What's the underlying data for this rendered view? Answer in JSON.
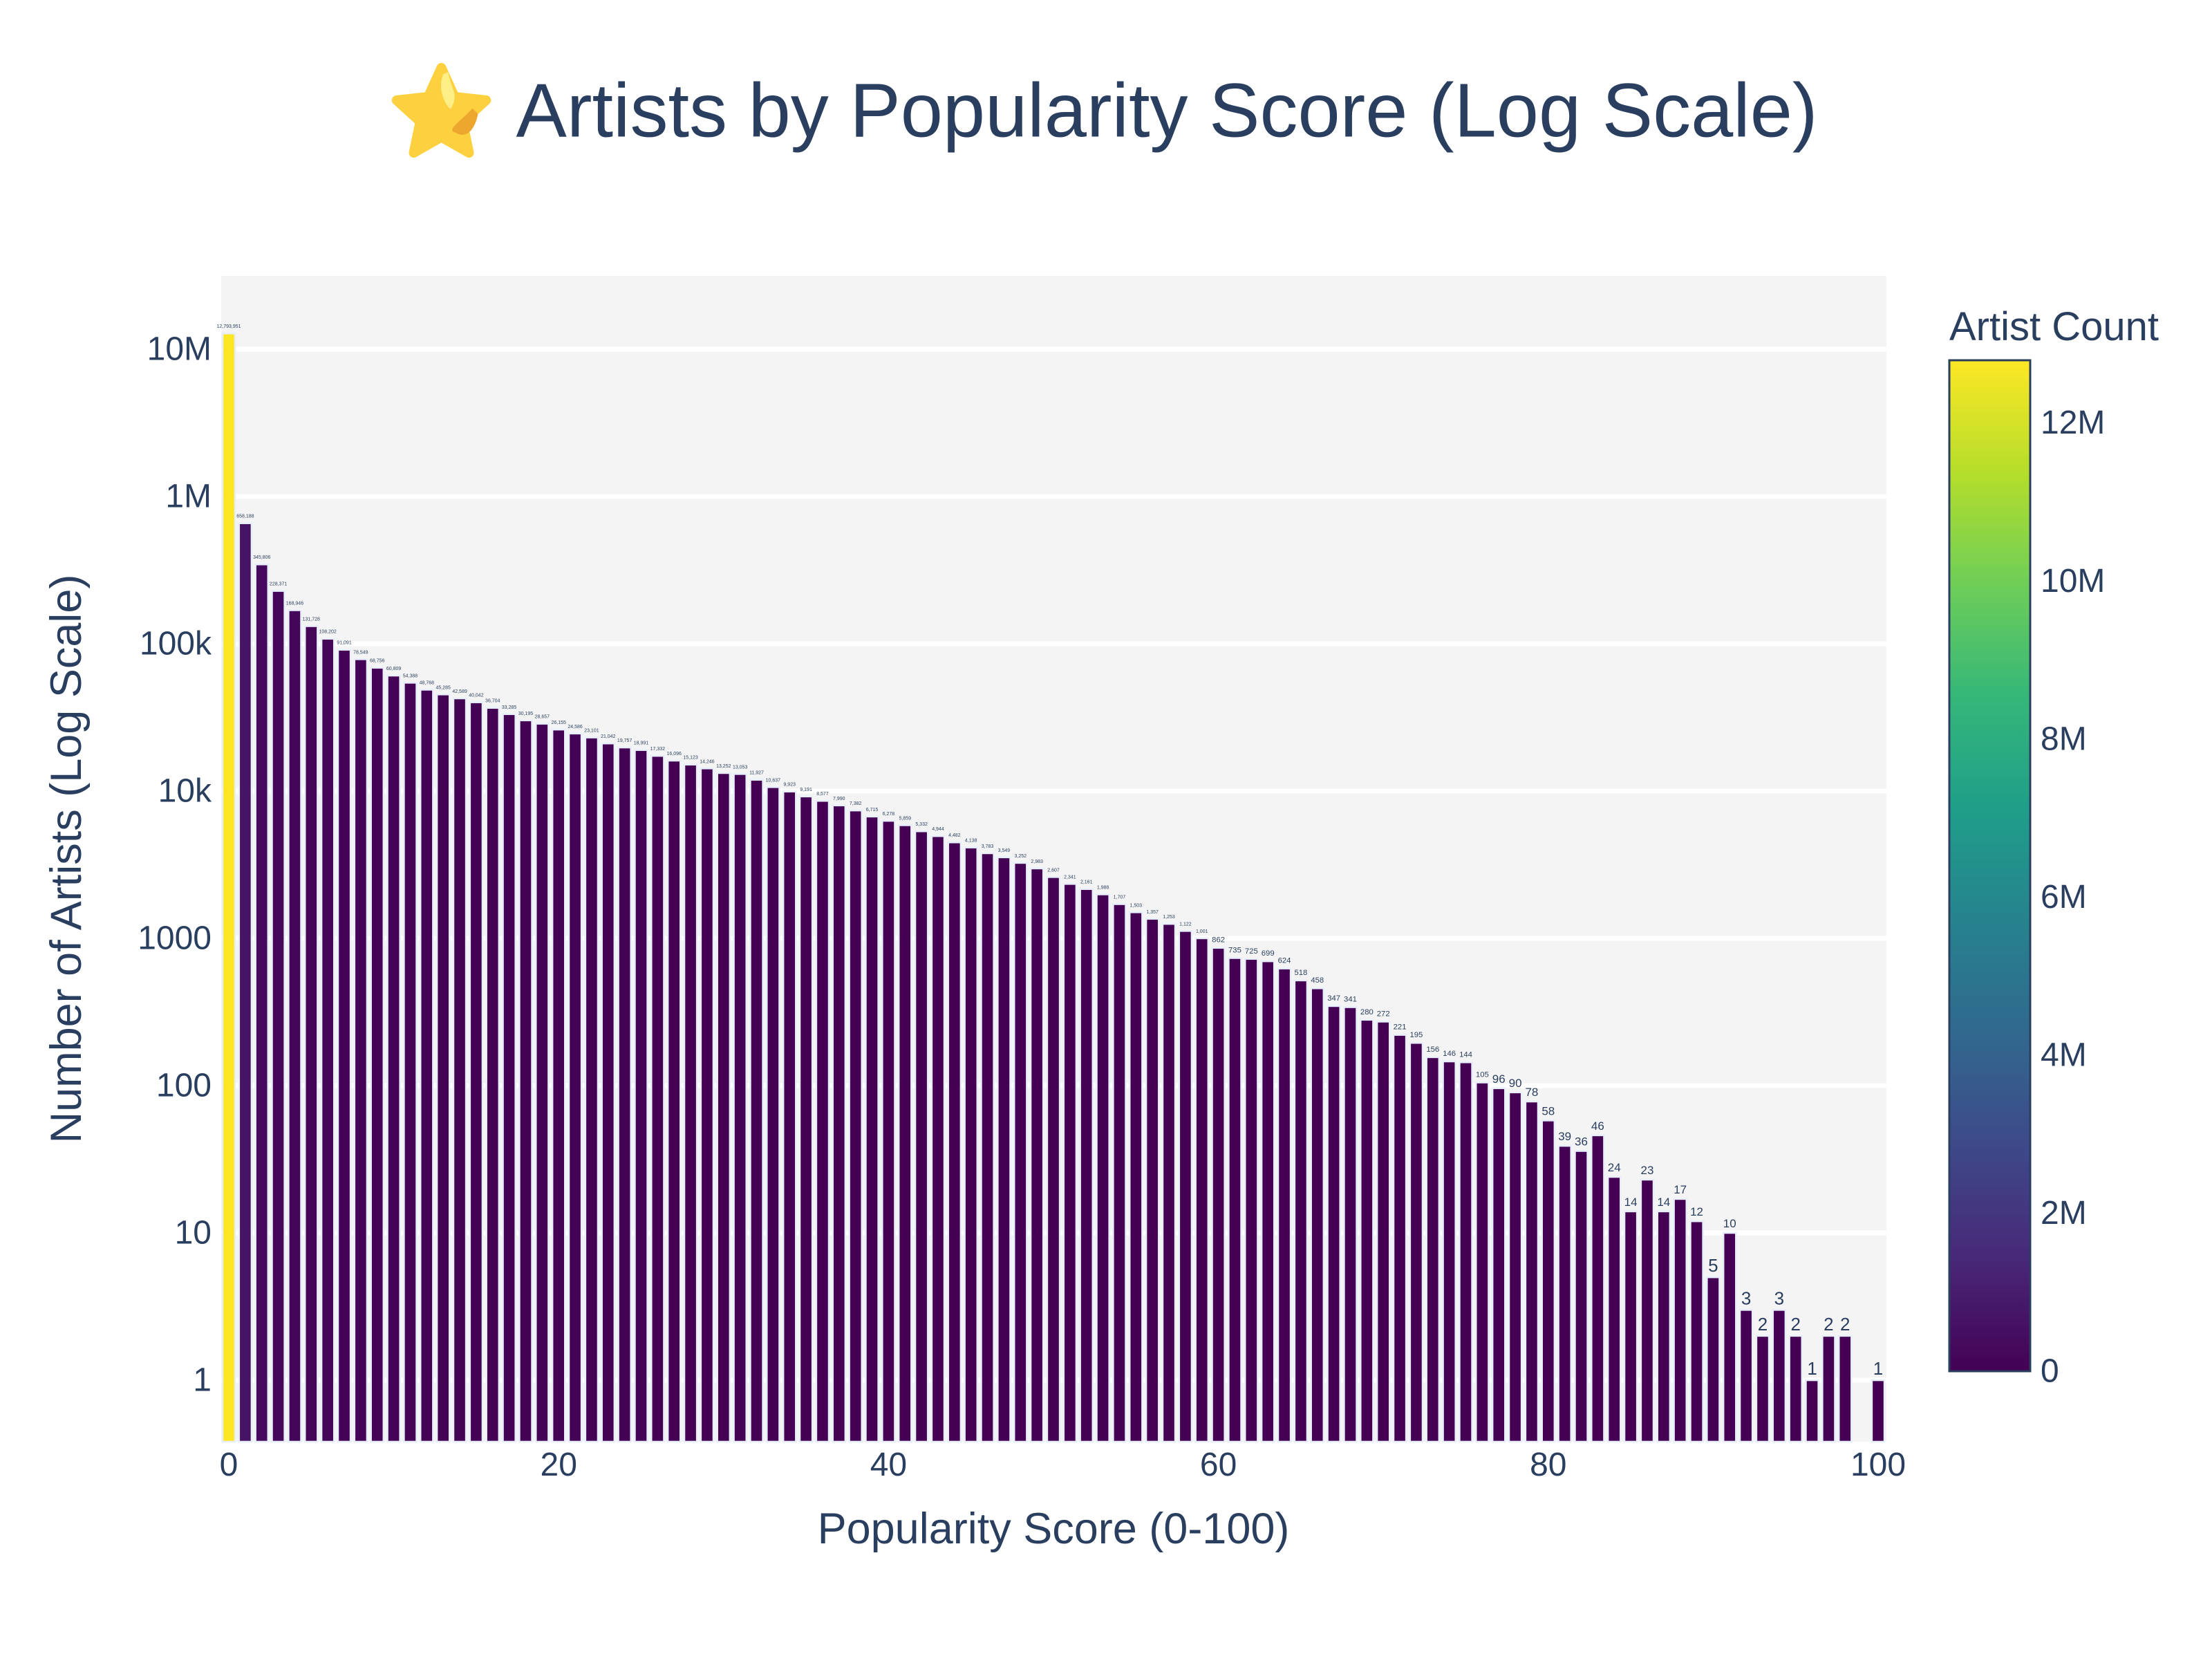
{
  "title": {
    "icon": "star-emoji",
    "text": "Artists by Popularity Score (Log Scale)"
  },
  "colors": {
    "text": "#2a3f5f",
    "plot_background": "#f4f4f4",
    "gridline": "#ffffff",
    "page_background": "#ffffff",
    "bar_outline": "#e8eefa",
    "colorbar_outline": "#2a3f5f",
    "star_fill": "#fcd03f",
    "star_highlight": "#fdee86",
    "star_shade": "#eda62e",
    "viridis": [
      "#440154",
      "#482878",
      "#3e4989",
      "#31688e",
      "#26828e",
      "#1f9e89",
      "#35b779",
      "#6ece58",
      "#b5de2b",
      "#fde725"
    ]
  },
  "chart_data": {
    "type": "bar",
    "title": "⭐ Artists by Popularity Score (Log Scale)",
    "xlabel": "Popularity Score (0-100)",
    "ylabel": "Number of Artists (Log Scale)",
    "x_range": [
      -0.5,
      100.5
    ],
    "y_scale": "log",
    "grid": true,
    "x": [
      0,
      1,
      2,
      3,
      4,
      5,
      6,
      7,
      8,
      9,
      10,
      11,
      12,
      13,
      14,
      15,
      16,
      17,
      18,
      19,
      20,
      21,
      22,
      23,
      24,
      25,
      26,
      27,
      28,
      29,
      30,
      31,
      32,
      33,
      34,
      35,
      36,
      37,
      38,
      39,
      40,
      41,
      42,
      43,
      44,
      45,
      46,
      47,
      48,
      49,
      50,
      51,
      52,
      53,
      54,
      55,
      56,
      57,
      58,
      59,
      60,
      61,
      62,
      63,
      64,
      65,
      66,
      67,
      68,
      69,
      70,
      71,
      72,
      73,
      74,
      75,
      76,
      77,
      78,
      79,
      80,
      81,
      82,
      83,
      84,
      85,
      86,
      87,
      88,
      89,
      90,
      91,
      92,
      93,
      94,
      95,
      96,
      97,
      98,
      99,
      100
    ],
    "values": [
      12793951,
      658188,
      345806,
      228371,
      168946,
      131728,
      108202,
      91091,
      78549,
      68756,
      60809,
      54388,
      48768,
      45285,
      42589,
      40042,
      36704,
      33285,
      30195,
      28657,
      26155,
      24586,
      23101,
      21042,
      19757,
      18991,
      17332,
      16096,
      15123,
      14246,
      13252,
      13053,
      11927,
      10637,
      9923,
      9191,
      8577,
      7990,
      7382,
      6715,
      6278,
      5859,
      5332,
      4944,
      4482,
      4138,
      3783,
      3549,
      3252,
      2983,
      2607,
      2341,
      2161,
      1988,
      1707,
      1503,
      1357,
      1253,
      1122,
      1001,
      862,
      735,
      725,
      699,
      624,
      518,
      458,
      347,
      341,
      280,
      272,
      221,
      195,
      156,
      146,
      144,
      105,
      96,
      90,
      78,
      58,
      39,
      36,
      46,
      24,
      14,
      23,
      14,
      17,
      12,
      5,
      10,
      3,
      2,
      3,
      2,
      1,
      2,
      2,
      null,
      1
    ],
    "labels": [
      "12,793,951",
      "658,188",
      "345,806",
      "228,371",
      "168,946",
      "131,728",
      "108,202",
      "91,091",
      "78,549",
      "68,756",
      "60,809",
      "54,388",
      "48,768",
      "45,285",
      "42,589",
      "40,042",
      "36,704",
      "33,285",
      "30,195",
      "28,657",
      "26,155",
      "24,586",
      "23,101",
      "21,042",
      "19,757",
      "18,991",
      "17,332",
      "16,096",
      "15,123",
      "14,246",
      "13,252",
      "13,053",
      "11,927",
      "10,637",
      "9,923",
      "9,191",
      "8,577",
      "7,990",
      "7,382",
      "6,715",
      "6,278",
      "5,859",
      "5,332",
      "4,944",
      "4,482",
      "4,138",
      "3,783",
      "3,549",
      "3,252",
      "2,983",
      "2,607",
      "2,341",
      "2,161",
      "1,988",
      "1,707",
      "1,503",
      "1,357",
      "1,253",
      "1,122",
      "1,001",
      "862",
      "735",
      "725",
      "699",
      "624",
      "518",
      "458",
      "347",
      "341",
      "280",
      "272",
      "221",
      "195",
      "156",
      "146",
      "144",
      "105",
      "96",
      "90",
      "78",
      "58",
      "39",
      "36",
      "46",
      "24",
      "14",
      "23",
      "14",
      "17",
      "12",
      "5",
      "10",
      "3",
      "2",
      "3",
      "2",
      "1",
      "2",
      "2",
      null,
      "1"
    ],
    "y_ticks": [
      {
        "value": 1,
        "label": "1"
      },
      {
        "value": 10,
        "label": "10"
      },
      {
        "value": 100,
        "label": "100"
      },
      {
        "value": 1000,
        "label": "1000"
      },
      {
        "value": 10000,
        "label": "10k"
      },
      {
        "value": 100000,
        "label": "100k"
      },
      {
        "value": 1000000,
        "label": "1M"
      },
      {
        "value": 10000000,
        "label": "10M"
      }
    ],
    "x_ticks": [
      {
        "value": 0,
        "label": "0"
      },
      {
        "value": 20,
        "label": "20"
      },
      {
        "value": 40,
        "label": "40"
      },
      {
        "value": 60,
        "label": "60"
      },
      {
        "value": 80,
        "label": "80"
      },
      {
        "value": 100,
        "label": "100"
      }
    ],
    "legend_position": "right",
    "colorbar": {
      "title": "Artist Count",
      "max": 12793951,
      "min": 0,
      "ticks": [
        {
          "value": 0,
          "label": "0"
        },
        {
          "value": 2000000,
          "label": "2M"
        },
        {
          "value": 4000000,
          "label": "4M"
        },
        {
          "value": 6000000,
          "label": "6M"
        },
        {
          "value": 8000000,
          "label": "8M"
        },
        {
          "value": 10000000,
          "label": "10M"
        },
        {
          "value": 12000000,
          "label": "12M"
        }
      ]
    }
  }
}
